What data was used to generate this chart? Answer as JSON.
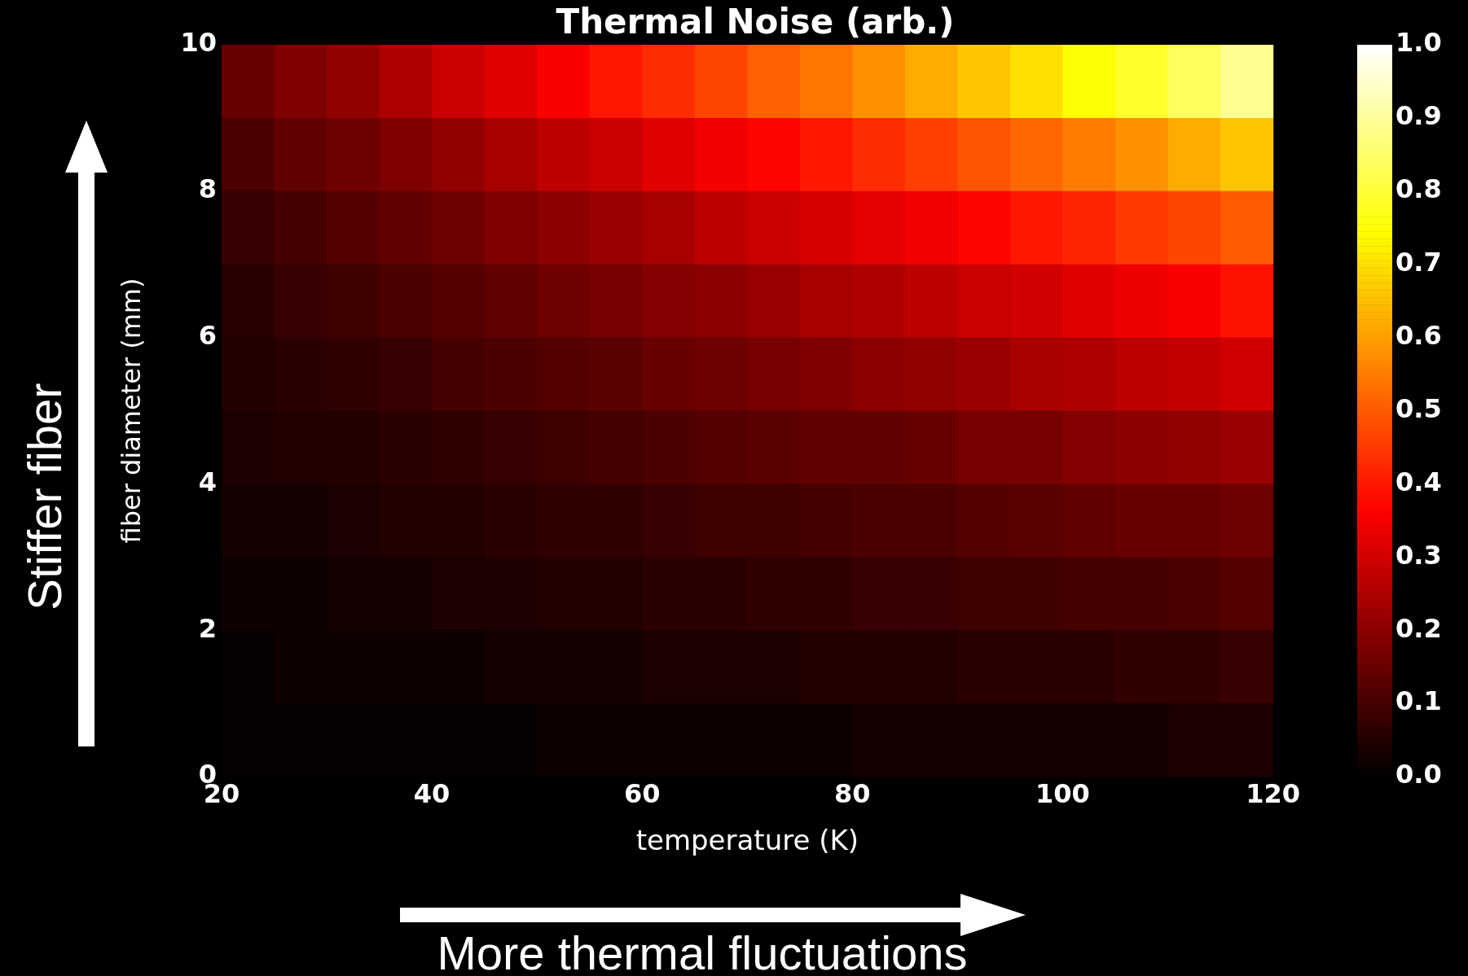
{
  "chart_data": {
    "type": "heatmap",
    "title": "Thermal Noise (arb.)",
    "xlabel": "temperature (K)",
    "ylabel": "fiber diameter (mm)",
    "x": [
      22.5,
      27.5,
      32.5,
      37.5,
      42.5,
      47.5,
      52.5,
      57.5,
      62.5,
      67.5,
      72.5,
      77.5,
      82.5,
      87.5,
      92.5,
      97.5,
      102.5,
      107.5,
      112.5,
      117.5
    ],
    "y": [
      9.5,
      8.5,
      7.5,
      6.5,
      5.5,
      4.5,
      3.5,
      2.5,
      1.5,
      0.5
    ],
    "cells": [
      [
        0.15,
        0.18,
        0.21,
        0.25,
        0.29,
        0.32,
        0.36,
        0.4,
        0.43,
        0.47,
        0.51,
        0.54,
        0.58,
        0.62,
        0.66,
        0.7,
        0.75,
        0.79,
        0.84,
        0.89
      ],
      [
        0.11,
        0.14,
        0.16,
        0.18,
        0.21,
        0.24,
        0.27,
        0.29,
        0.32,
        0.35,
        0.37,
        0.4,
        0.43,
        0.46,
        0.49,
        0.52,
        0.55,
        0.58,
        0.62,
        0.66
      ],
      [
        0.08,
        0.1,
        0.12,
        0.14,
        0.16,
        0.18,
        0.2,
        0.22,
        0.24,
        0.27,
        0.29,
        0.31,
        0.33,
        0.35,
        0.37,
        0.4,
        0.42,
        0.45,
        0.47,
        0.5
      ],
      [
        0.06,
        0.08,
        0.09,
        0.11,
        0.12,
        0.14,
        0.16,
        0.17,
        0.19,
        0.2,
        0.22,
        0.24,
        0.25,
        0.27,
        0.29,
        0.3,
        0.32,
        0.34,
        0.36,
        0.39
      ],
      [
        0.05,
        0.06,
        0.07,
        0.08,
        0.1,
        0.11,
        0.12,
        0.13,
        0.15,
        0.16,
        0.17,
        0.18,
        0.2,
        0.21,
        0.22,
        0.24,
        0.25,
        0.27,
        0.28,
        0.3
      ],
      [
        0.04,
        0.05,
        0.05,
        0.06,
        0.07,
        0.08,
        0.09,
        0.1,
        0.11,
        0.12,
        0.13,
        0.14,
        0.14,
        0.15,
        0.17,
        0.17,
        0.19,
        0.2,
        0.21,
        0.22
      ],
      [
        0.03,
        0.03,
        0.04,
        0.05,
        0.05,
        0.06,
        0.07,
        0.07,
        0.08,
        0.09,
        0.09,
        0.1,
        0.11,
        0.11,
        0.12,
        0.13,
        0.14,
        0.15,
        0.15,
        0.16
      ],
      [
        0.02,
        0.02,
        0.03,
        0.03,
        0.04,
        0.04,
        0.05,
        0.05,
        0.06,
        0.06,
        0.07,
        0.07,
        0.08,
        0.08,
        0.09,
        0.09,
        0.1,
        0.1,
        0.11,
        0.12
      ],
      [
        0.01,
        0.02,
        0.02,
        0.02,
        0.02,
        0.03,
        0.03,
        0.03,
        0.04,
        0.04,
        0.04,
        0.05,
        0.05,
        0.05,
        0.06,
        0.06,
        0.06,
        0.07,
        0.07,
        0.08
      ],
      [
        0.01,
        0.01,
        0.01,
        0.01,
        0.01,
        0.01,
        0.02,
        0.02,
        0.02,
        0.02,
        0.02,
        0.02,
        0.03,
        0.03,
        0.03,
        0.03,
        0.03,
        0.03,
        0.04,
        0.04
      ]
    ],
    "xlim": [
      20,
      120
    ],
    "xticks": [
      20,
      40,
      60,
      80,
      100,
      120
    ],
    "ylim": [
      0,
      10
    ],
    "yticks": [
      0,
      2,
      4,
      6,
      8,
      10
    ],
    "clim": [
      0,
      1
    ],
    "cticks": [
      {
        "value": 0,
        "label": "0.0"
      },
      {
        "value": 0.1,
        "label": "0.1"
      },
      {
        "value": 0.2,
        "label": "0.2"
      },
      {
        "value": 0.3,
        "label": "0.3"
      },
      {
        "value": 0.4,
        "label": "0.4"
      },
      {
        "value": 0.5,
        "label": "0.5"
      },
      {
        "value": 0.6,
        "label": "0.6"
      },
      {
        "value": 0.7,
        "label": "0.7"
      },
      {
        "value": 0.8,
        "label": "0.8"
      },
      {
        "value": 0.9,
        "label": "0.9"
      },
      {
        "value": 1,
        "label": "1.0"
      }
    ],
    "annotations": [
      "Stiffer fiber",
      "More thermal fluctuations"
    ]
  }
}
